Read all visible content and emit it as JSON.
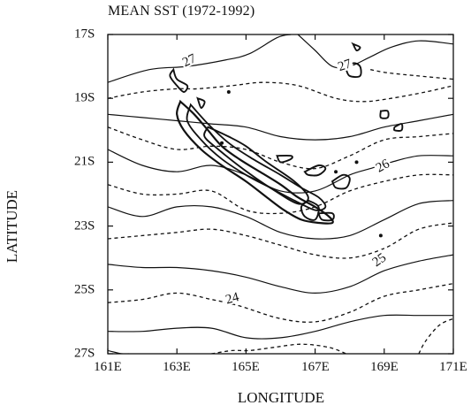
{
  "map": {
    "title": "MEAN SST (1972-1992)",
    "xlabel": "LONGITUDE",
    "ylabel": "LATITUDE",
    "x_ticks": [
      "161E",
      "163E",
      "165E",
      "167E",
      "169E",
      "171E"
    ],
    "y_ticks": [
      "17S",
      "19S",
      "21S",
      "23S",
      "25S",
      "27S"
    ],
    "lon_range": [
      161,
      171
    ],
    "lat_range": [
      -27,
      -17
    ],
    "contour_labels": [
      "27",
      "27",
      "26",
      "25",
      "24"
    ],
    "contours": [
      {
        "dash": false,
        "pts": [
          [
            161,
            -18.5
          ],
          [
            162.2,
            -18.1
          ],
          [
            163.3,
            -18.0
          ],
          [
            164.4,
            -17.8
          ],
          [
            165.1,
            -17.6
          ],
          [
            165.9,
            -17.1
          ],
          [
            166.3,
            -17.0
          ]
        ]
      },
      {
        "dash": false,
        "pts": [
          [
            166.5,
            -17.0
          ],
          [
            167.0,
            -17.5
          ],
          [
            167.5,
            -18.0
          ],
          [
            168.0,
            -18.0
          ],
          [
            168.6,
            -17.7
          ],
          [
            169.2,
            -17.4
          ],
          [
            170,
            -17.2
          ],
          [
            171,
            -17.3
          ]
        ]
      },
      {
        "dash": true,
        "pts": [
          [
            168.6,
            -18.1
          ],
          [
            169.1,
            -18.2
          ],
          [
            170,
            -18.3
          ],
          [
            171,
            -18.4
          ]
        ]
      },
      {
        "dash": true,
        "pts": [
          [
            161,
            -19.0
          ],
          [
            162,
            -18.8
          ],
          [
            163,
            -18.7
          ],
          [
            163.6,
            -18.7
          ],
          [
            164.6,
            -18.6
          ],
          [
            165.5,
            -18.5
          ],
          [
            166.5,
            -18.6
          ],
          [
            167.6,
            -19.0
          ],
          [
            168.4,
            -19.1
          ],
          [
            169.2,
            -19.0
          ],
          [
            170.2,
            -18.8
          ],
          [
            171,
            -18.6
          ]
        ]
      },
      {
        "dash": false,
        "pts": [
          [
            161,
            -19.5
          ],
          [
            162,
            -19.6
          ],
          [
            163,
            -19.7
          ],
          [
            164.0,
            -19.8
          ],
          [
            165.0,
            -19.9
          ],
          [
            166.0,
            -20.2
          ],
          [
            167.0,
            -20.3
          ],
          [
            168.0,
            -20.2
          ],
          [
            169,
            -19.9
          ],
          [
            170,
            -19.7
          ],
          [
            171,
            -19.5
          ]
        ]
      },
      {
        "dash": true,
        "pts": [
          [
            161,
            -19.9
          ],
          [
            162,
            -20.3
          ],
          [
            163,
            -20.6
          ],
          [
            164.0,
            -20.5
          ],
          [
            165.0,
            -20.6
          ],
          [
            166.0,
            -21.0
          ],
          [
            167.0,
            -21.2
          ],
          [
            168.0,
            -20.8
          ],
          [
            169,
            -20.3
          ],
          [
            170,
            -20.2
          ],
          [
            171,
            -20.1
          ]
        ]
      },
      {
        "dash": false,
        "pts": [
          [
            161,
            -20.6
          ],
          [
            162,
            -21.1
          ],
          [
            163,
            -21.3
          ],
          [
            164,
            -21.1
          ],
          [
            165,
            -21.4
          ],
          [
            166,
            -21.9
          ],
          [
            167,
            -21.9
          ],
          [
            168,
            -21.4
          ],
          [
            168.6,
            -21.2
          ],
          [
            169.2,
            -21.0
          ],
          [
            170,
            -20.8
          ],
          [
            171,
            -20.8
          ]
        ]
      },
      {
        "dash": true,
        "pts": [
          [
            161,
            -21.7
          ],
          [
            162,
            -22.0
          ],
          [
            163,
            -22.0
          ],
          [
            164,
            -21.9
          ],
          [
            165,
            -22.5
          ],
          [
            166,
            -22.6
          ],
          [
            167,
            -22.4
          ],
          [
            168,
            -21.9
          ],
          [
            169,
            -21.6
          ],
          [
            170,
            -21.4
          ],
          [
            171,
            -21.4
          ]
        ]
      },
      {
        "dash": false,
        "pts": [
          [
            161,
            -22.4
          ],
          [
            162,
            -22.7
          ],
          [
            163,
            -22.4
          ],
          [
            164,
            -22.4
          ],
          [
            165,
            -22.7
          ],
          [
            166,
            -23.2
          ],
          [
            167,
            -23.4
          ],
          [
            168,
            -23.3
          ],
          [
            169,
            -22.8
          ],
          [
            170,
            -22.3
          ],
          [
            171,
            -22.2
          ]
        ]
      },
      {
        "dash": true,
        "pts": [
          [
            161,
            -23.4
          ],
          [
            162,
            -23.3
          ],
          [
            163,
            -23.2
          ],
          [
            164,
            -23.1
          ],
          [
            165,
            -23.3
          ],
          [
            166,
            -23.6
          ],
          [
            167,
            -23.9
          ],
          [
            168,
            -24.0
          ],
          [
            169,
            -23.7
          ],
          [
            170,
            -23.1
          ],
          [
            171,
            -22.9
          ]
        ]
      },
      {
        "dash": false,
        "pts": [
          [
            161,
            -24.2
          ],
          [
            162,
            -24.3
          ],
          [
            163,
            -24.3
          ],
          [
            164,
            -24.4
          ],
          [
            165,
            -24.6
          ],
          [
            166,
            -24.9
          ],
          [
            167,
            -25.1
          ],
          [
            168,
            -24.9
          ],
          [
            169,
            -24.4
          ],
          [
            170,
            -24.1
          ],
          [
            171,
            -23.9
          ]
        ]
      },
      {
        "dash": true,
        "pts": [
          [
            161,
            -25.4
          ],
          [
            162,
            -25.3
          ],
          [
            163,
            -25.1
          ],
          [
            164,
            -25.3
          ],
          [
            164.8,
            -25.5
          ],
          [
            166,
            -25.9
          ],
          [
            167,
            -26.0
          ],
          [
            168,
            -25.7
          ],
          [
            169,
            -25.2
          ],
          [
            170,
            -25.0
          ],
          [
            171,
            -24.8
          ]
        ]
      },
      {
        "dash": false,
        "pts": [
          [
            161,
            -26.3
          ],
          [
            162,
            -26.3
          ],
          [
            163,
            -26.2
          ],
          [
            164,
            -26.2
          ],
          [
            165,
            -26.5
          ],
          [
            166,
            -26.5
          ],
          [
            167,
            -26.3
          ],
          [
            168,
            -26.0
          ],
          [
            169,
            -25.8
          ],
          [
            170,
            -25.8
          ],
          [
            171,
            -25.8
          ]
        ]
      },
      {
        "dash": false,
        "pts": [
          [
            161,
            -26.9
          ],
          [
            161.4,
            -27.0
          ],
          [
            161.6,
            -27.0
          ]
        ]
      },
      {
        "dash": true,
        "pts": [
          [
            164.0,
            -27.0
          ],
          [
            164.6,
            -26.9
          ],
          [
            165.1,
            -26.9
          ],
          [
            165.8,
            -26.8
          ],
          [
            166.6,
            -26.7
          ],
          [
            167.4,
            -26.8
          ],
          [
            167.9,
            -27.0
          ]
        ]
      },
      {
        "dash": true,
        "pts": [
          [
            170.0,
            -27.0
          ],
          [
            170.2,
            -26.6
          ],
          [
            170.6,
            -26.1
          ],
          [
            171,
            -25.9
          ]
        ]
      }
    ],
    "coast_inner": [
      [
        163.1,
        -19.1
      ],
      [
        163.5,
        -19.5
      ],
      [
        163.9,
        -20.0
      ],
      [
        164.3,
        -20.5
      ],
      [
        164.8,
        -20.9
      ],
      [
        165.4,
        -21.3
      ],
      [
        166.0,
        -21.7
      ],
      [
        166.5,
        -22.1
      ],
      [
        167.0,
        -22.4
      ],
      [
        167.4,
        -22.7
      ],
      [
        167.5,
        -22.9
      ],
      [
        167.1,
        -22.9
      ],
      [
        166.6,
        -22.8
      ],
      [
        166.1,
        -22.5
      ],
      [
        165.6,
        -22.1
      ],
      [
        165.0,
        -21.6
      ],
      [
        164.3,
        -21.1
      ],
      [
        163.7,
        -20.6
      ],
      [
        163.2,
        -20.0
      ],
      [
        163.0,
        -19.5
      ],
      [
        163.1,
        -19.1
      ]
    ],
    "coast_outer": [
      [
        163.4,
        -19.2
      ],
      [
        163.9,
        -19.8
      ],
      [
        164.5,
        -20.4
      ],
      [
        165.2,
        -20.9
      ],
      [
        166.0,
        -21.4
      ],
      [
        166.6,
        -21.8
      ],
      [
        167.1,
        -22.1
      ],
      [
        167.3,
        -22.4
      ],
      [
        167.0,
        -22.5
      ],
      [
        166.4,
        -22.2
      ],
      [
        165.7,
        -21.8
      ],
      [
        165.0,
        -21.4
      ],
      [
        164.3,
        -20.9
      ],
      [
        163.7,
        -20.3
      ],
      [
        163.3,
        -19.7
      ],
      [
        163.4,
        -19.2
      ]
    ],
    "islands": [
      {
        "pts": [
          [
            163.9,
            -19.9
          ],
          [
            164.5,
            -20.2
          ],
          [
            165.0,
            -20.5
          ],
          [
            165.6,
            -21.0
          ],
          [
            166.4,
            -21.6
          ],
          [
            166.8,
            -22.1
          ],
          [
            166.5,
            -22.3
          ],
          [
            165.7,
            -21.8
          ],
          [
            164.9,
            -21.2
          ],
          [
            164.2,
            -20.6
          ],
          [
            163.8,
            -20.2
          ],
          [
            163.9,
            -19.9
          ]
        ]
      },
      {
        "pts": [
          [
            162.9,
            -18.1
          ],
          [
            163.0,
            -18.4
          ],
          [
            163.3,
            -18.6
          ],
          [
            163.2,
            -18.8
          ],
          [
            163.0,
            -18.6
          ],
          [
            162.8,
            -18.3
          ],
          [
            162.9,
            -18.1
          ]
        ]
      },
      {
        "pts": [
          [
            166.8,
            -22.2
          ],
          [
            167.1,
            -22.4
          ],
          [
            167.0,
            -22.8
          ],
          [
            166.7,
            -22.7
          ],
          [
            166.6,
            -22.4
          ],
          [
            166.8,
            -22.2
          ]
        ]
      },
      {
        "pts": [
          [
            167.1,
            -22.6
          ],
          [
            167.5,
            -22.6
          ],
          [
            167.5,
            -22.8
          ],
          [
            167.2,
            -22.8
          ],
          [
            167.1,
            -22.6
          ]
        ]
      },
      {
        "pts": [
          [
            166.7,
            -21.3
          ],
          [
            167.1,
            -21.1
          ],
          [
            167.3,
            -21.2
          ],
          [
            167.1,
            -21.4
          ],
          [
            166.8,
            -21.4
          ],
          [
            166.7,
            -21.3
          ]
        ]
      },
      {
        "pts": [
          [
            165.9,
            -20.8
          ],
          [
            166.3,
            -20.8
          ],
          [
            166.3,
            -20.9
          ],
          [
            166.0,
            -21.0
          ],
          [
            165.9,
            -20.8
          ]
        ]
      },
      {
        "pts": [
          [
            167.5,
            -21.6
          ],
          [
            167.8,
            -21.4
          ],
          [
            168.0,
            -21.5
          ],
          [
            167.9,
            -21.8
          ],
          [
            167.6,
            -21.8
          ],
          [
            167.5,
            -21.6
          ]
        ]
      },
      {
        "pts": [
          [
            167.9,
            -18.1
          ],
          [
            168.1,
            -17.9
          ],
          [
            168.3,
            -18.0
          ],
          [
            168.3,
            -18.3
          ],
          [
            168.0,
            -18.3
          ],
          [
            167.9,
            -18.1
          ]
        ]
      },
      {
        "pts": [
          [
            168.1,
            -17.3
          ],
          [
            168.3,
            -17.4
          ],
          [
            168.2,
            -17.5
          ],
          [
            168.1,
            -17.3
          ]
        ]
      },
      {
        "pts": [
          [
            168.9,
            -19.4
          ],
          [
            169.1,
            -19.4
          ],
          [
            169.1,
            -19.6
          ],
          [
            168.9,
            -19.6
          ],
          [
            168.9,
            -19.4
          ]
        ]
      },
      {
        "pts": [
          [
            169.3,
            -19.9
          ],
          [
            169.5,
            -19.8
          ],
          [
            169.5,
            -20.0
          ],
          [
            169.3,
            -20.0
          ],
          [
            169.3,
            -19.9
          ]
        ]
      },
      {
        "pts": [
          [
            163.6,
            -19.0
          ],
          [
            163.8,
            -19.1
          ],
          [
            163.7,
            -19.3
          ],
          [
            163.6,
            -19.0
          ]
        ]
      }
    ],
    "dots": [
      [
        164.5,
        -18.8
      ],
      [
        168.9,
        -23.3
      ],
      [
        167.6,
        -21.3
      ],
      [
        168.2,
        -21.0
      ],
      [
        164.3,
        -20.4
      ]
    ]
  }
}
